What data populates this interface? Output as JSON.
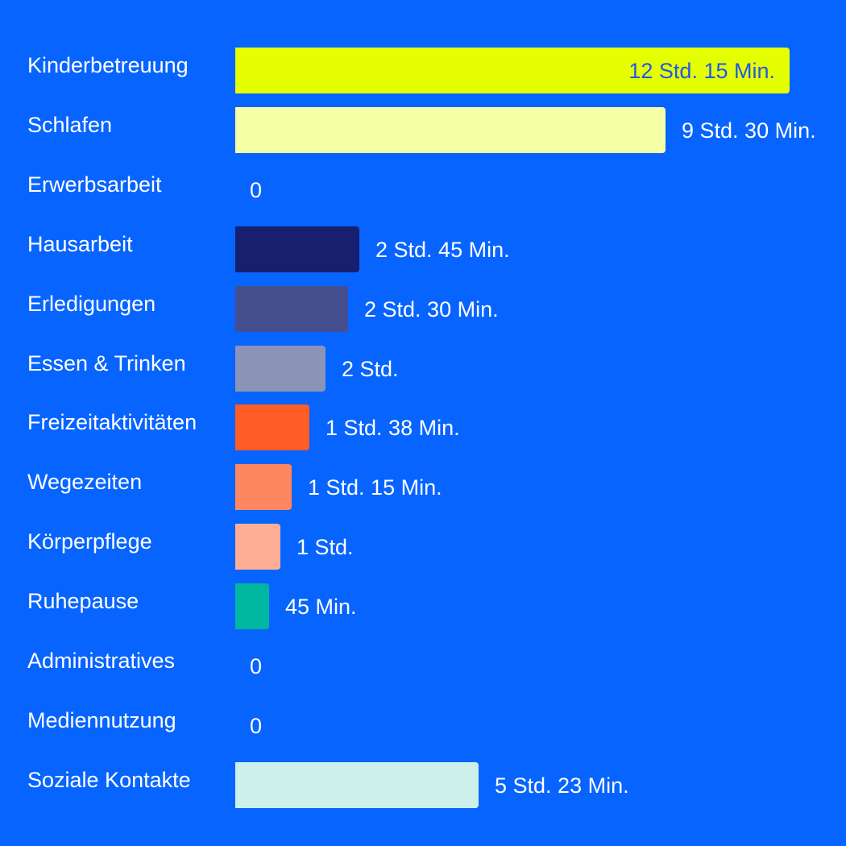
{
  "chart_data": {
    "type": "bar",
    "orientation": "horizontal",
    "unit": "minutes",
    "xlim": [
      0,
      735
    ],
    "grid": false,
    "categories": [
      "Kinderbetreuung",
      "Schlafen",
      "Erwerbsarbeit",
      "Hausarbeit",
      "Erledigungen",
      "Essen & Trinken",
      "Freizeitaktivitäten",
      "Wegezeiten",
      "Körperpflege",
      "Ruhepause",
      "Administratives",
      "Mediennutzung",
      "Soziale Kontakte"
    ],
    "values": [
      735,
      570,
      0,
      165,
      150,
      120,
      98,
      75,
      60,
      45,
      0,
      0,
      323
    ],
    "value_labels": [
      "12 Std. 15 Min.",
      "9 Std. 30 Min.",
      "0",
      "2 Std. 45 Min.",
      "2 Std. 30 Min.",
      "2 Std.",
      "1 Std. 38 Min.",
      "1 Std. 15 Min.",
      "1 Std.",
      "45 Min.",
      "0",
      "0",
      "5 Std. 23 Min."
    ],
    "colors": [
      "#e5ff00",
      "#f5ffa6",
      "#0764ff",
      "#16206e",
      "#454f8f",
      "#8b93b8",
      "#ff5c26",
      "#ff8760",
      "#ffae96",
      "#00b8a0",
      "#0764ff",
      "#0764ff",
      "#ccf0ea"
    ]
  },
  "colors": {
    "background": "#0764ff",
    "label_text": "#ffffff",
    "inside_label_text": "#1f58e8"
  }
}
